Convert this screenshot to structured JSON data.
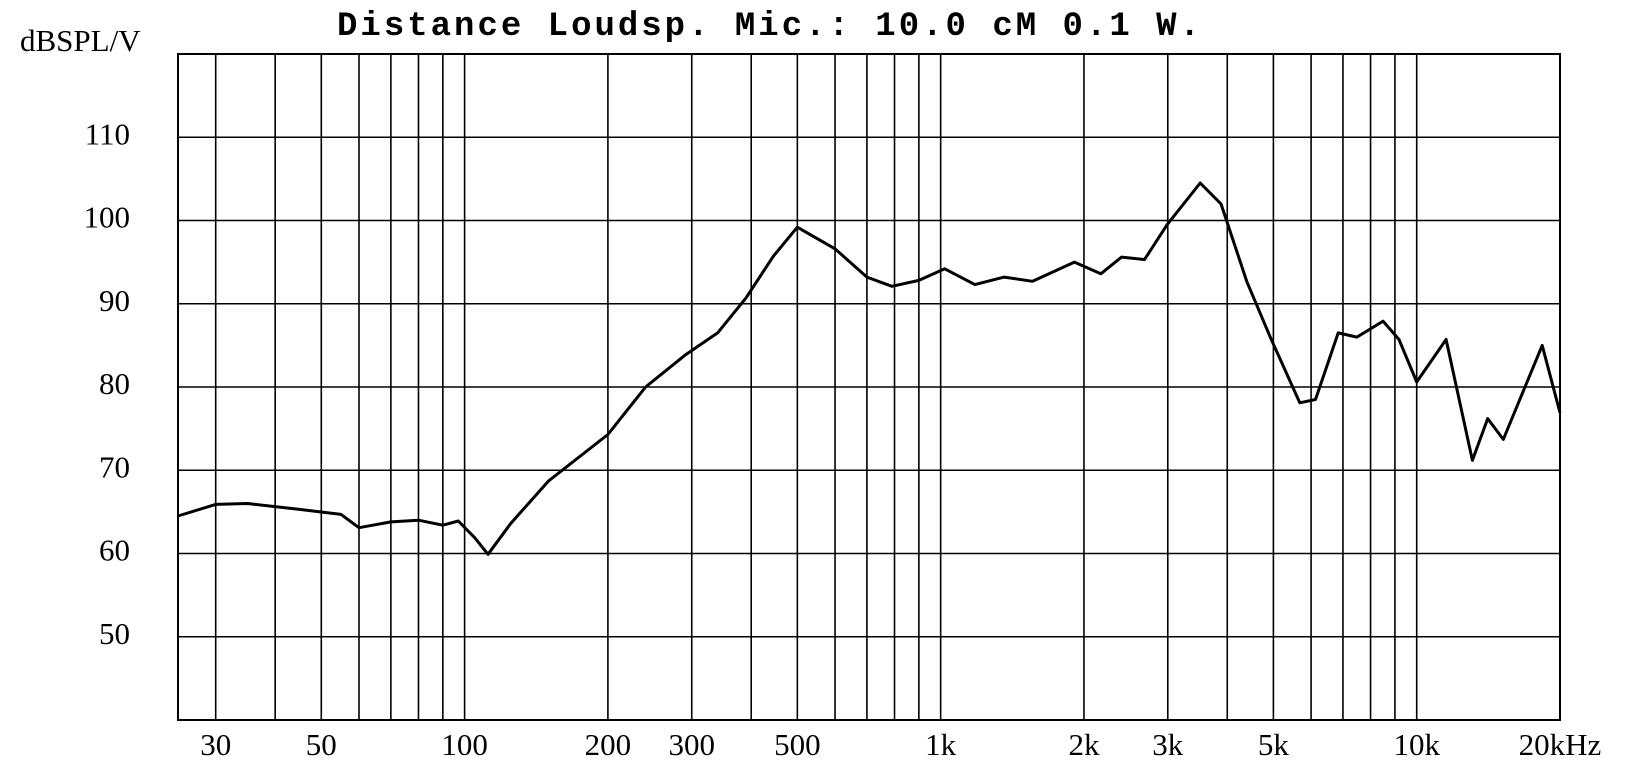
{
  "chart_data": {
    "type": "line",
    "title": "Distance Loudsp. Mic.: 10.0 cM 0.1 W.",
    "y_label": "dBSPL/V",
    "log_x": true,
    "grid": true,
    "color": "#000000",
    "xlim": [
      25,
      20000
    ],
    "ylim": [
      40,
      120
    ],
    "yticks": [
      50,
      60,
      70,
      80,
      90,
      100,
      110
    ],
    "xticks": [
      30,
      50,
      100,
      200,
      300,
      500,
      {
        "value": 1000,
        "label": "1k"
      },
      {
        "value": 2000,
        "label": "2k"
      },
      {
        "value": 3000,
        "label": "3k"
      },
      {
        "value": 5000,
        "label": "5k"
      },
      {
        "value": 10000,
        "label": "10k"
      },
      {
        "value": 20000,
        "label": "20kHz"
      }
    ],
    "xgrid_minor": [
      40,
      60,
      70,
      80,
      90,
      400,
      600,
      700,
      800,
      900,
      4000,
      6000,
      7000,
      8000,
      9000
    ],
    "x": [
      25,
      30,
      35,
      45,
      55,
      60,
      70,
      80,
      90,
      97,
      105,
      112,
      125,
      150,
      200,
      240,
      290,
      340,
      390,
      445,
      500,
      600,
      700,
      790,
      900,
      1020,
      1180,
      1360,
      1560,
      1910,
      2170,
      2400,
      2680,
      2990,
      3510,
      3880,
      4400,
      4950,
      5680,
      6130,
      6840,
      7490,
      8500,
      9180,
      10000,
      11530,
      13090,
      14100,
      15200,
      18350,
      20000
    ],
    "values": [
      64.5,
      65.9,
      66,
      65.3,
      64.7,
      63.1,
      63.8,
      64,
      63.4,
      63.9,
      61.9,
      59.9,
      63.6,
      68.7,
      74.3,
      80,
      83.8,
      86.5,
      90.7,
      95.7,
      99.2,
      96.6,
      93.2,
      92.1,
      92.8,
      94.2,
      92.3,
      93.2,
      92.7,
      95,
      93.6,
      95.6,
      95.3,
      99.5,
      104.5,
      102,
      92.6,
      85.7,
      78.1,
      78.5,
      86.5,
      86,
      87.9,
      85.7,
      80.6,
      85.7,
      71.2,
      76.2,
      73.7,
      85,
      76.9
    ]
  }
}
